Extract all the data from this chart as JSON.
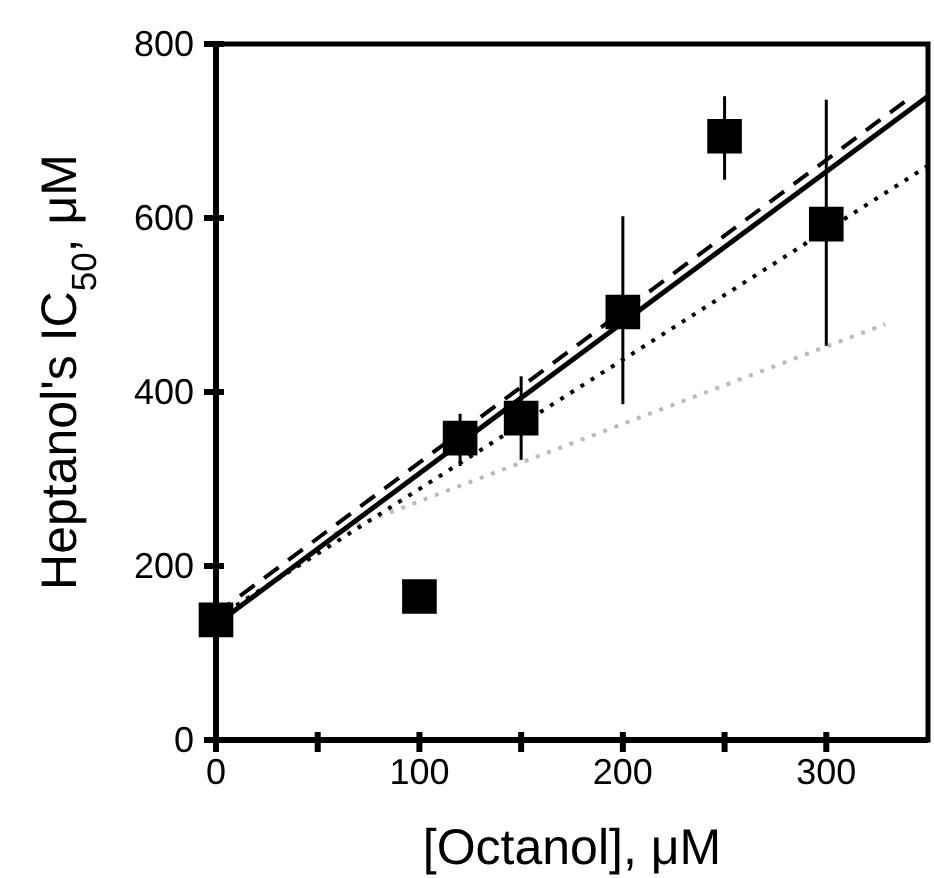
{
  "chart_data": {
    "type": "scatter",
    "xlabel": "[Octanol], μM",
    "ylabel": "Heptanol's IC$_{50}$, μM",
    "xlim": [
      0,
      350
    ],
    "xticks": [
      0,
      {
        "value": 50,
        "label": null
      },
      100,
      {
        "value": 150,
        "label": null
      },
      200,
      {
        "value": 250,
        "label": null
      },
      300
    ],
    "ylim": [
      0,
      800
    ],
    "yticks": [
      0,
      200,
      400,
      600,
      800
    ],
    "grid": false,
    "series": [
      {
        "type": "line",
        "color": "#bbbbbb",
        "line_style": "dotted",
        "marker": "none",
        "x": [
          58,
          329
        ],
        "values": [
          237,
          478
        ]
      },
      {
        "type": "line",
        "color": "#000000",
        "line_style": "dotted",
        "marker": "none",
        "x": [
          0,
          350
        ],
        "values": [
          140,
          660
        ]
      },
      {
        "type": "line",
        "color": "#000000",
        "line_style": "dashed",
        "marker": "none",
        "x": [
          0,
          341
        ],
        "values": [
          145,
          738
        ]
      },
      {
        "type": "line",
        "color": "#000000",
        "line_style": "solid",
        "marker": "none",
        "x": [
          0,
          350
        ],
        "values": [
          133,
          740
        ]
      },
      {
        "color": "#000000",
        "marker": "square",
        "x": [
          0,
          100,
          120,
          150,
          200,
          250,
          300
        ],
        "values": [
          138,
          165,
          347,
          370,
          492,
          694,
          593
        ],
        "errors": [
          null,
          null,
          [
            315,
            375
          ],
          [
            322,
            418
          ],
          [
            386,
            602
          ],
          [
            644,
            740
          ],
          [
            453,
            736
          ]
        ]
      }
    ]
  }
}
